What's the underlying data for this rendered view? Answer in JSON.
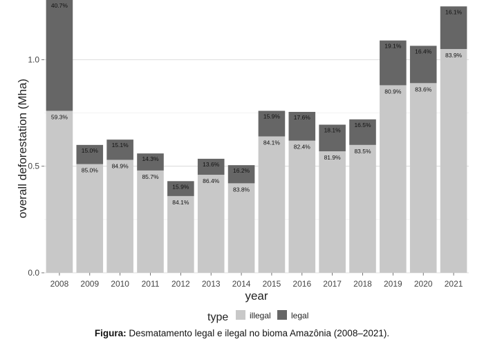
{
  "chart_data": {
    "type": "bar",
    "stacked": true,
    "title": "",
    "xlabel": "year",
    "ylabel": "overall deforestation (Mha)",
    "ylim": [
      0,
      1.28
    ],
    "yticks": [
      0.0,
      0.5,
      1.0
    ],
    "ytick_labels": [
      "0.0",
      "0.5",
      "1.0"
    ],
    "grid": true,
    "legend_position": "bottom",
    "legend_title": "type",
    "categories": [
      "2008",
      "2009",
      "2010",
      "2011",
      "2012",
      "2013",
      "2014",
      "2015",
      "2016",
      "2017",
      "2018",
      "2019",
      "2020",
      "2021"
    ],
    "series": [
      {
        "name": "illegal",
        "color": "#c8c8c8",
        "values": [
          0.76,
          0.51,
          0.53,
          0.48,
          0.36,
          0.46,
          0.42,
          0.64,
          0.62,
          0.57,
          0.6,
          0.88,
          0.89,
          1.05
        ],
        "labels": [
          "59.3%",
          "85.0%",
          "84.9%",
          "85.7%",
          "84.1%",
          "86.4%",
          "83.8%",
          "84.1%",
          "82.4%",
          "81.9%",
          "83.5%",
          "80.9%",
          "83.6%",
          "83.9%"
        ]
      },
      {
        "name": "legal",
        "color": "#666666",
        "values": [
          0.52,
          0.09,
          0.095,
          0.08,
          0.07,
          0.075,
          0.085,
          0.12,
          0.135,
          0.125,
          0.12,
          0.21,
          0.175,
          0.2
        ],
        "labels": [
          "40.7%",
          "15.0%",
          "15.1%",
          "14.3%",
          "15.9%",
          "13.6%",
          "16.2%",
          "15.9%",
          "17.6%",
          "18.1%",
          "16.5%",
          "19.1%",
          "16.4%",
          "16.1%"
        ]
      }
    ]
  },
  "caption": {
    "prefix": "Figura:",
    "text": " Desmatamento legal e ilegal no bioma Amazônia (2008–2021)."
  }
}
